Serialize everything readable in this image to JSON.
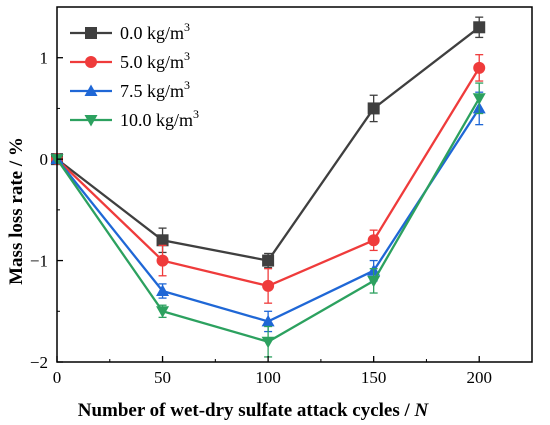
{
  "chart_data": {
    "type": "line",
    "xlabel": "Number of wet-dry sulfate attack cycles / ",
    "xlabel_italic": "N",
    "ylabel": "Mass loss rate / %",
    "x": [
      0,
      50,
      100,
      150,
      200
    ],
    "xlim": [
      0,
      225
    ],
    "ylim": [
      -2,
      1.5
    ],
    "xticks": [
      0,
      50,
      100,
      150,
      200
    ],
    "yticks": [
      -2,
      -1,
      0,
      1
    ],
    "xtick_labels": [
      "0",
      "50",
      "100",
      "150",
      "200"
    ],
    "ytick_labels": [
      "−2",
      "−1",
      "0",
      "1"
    ],
    "grid": false,
    "legend_position": "top-left",
    "series": [
      {
        "name": "0.0 kg/m",
        "name_sup": "3",
        "values": [
          0,
          -0.8,
          -1.0,
          0.5,
          1.3
        ],
        "errors": [
          0,
          0.12,
          0.07,
          0.13,
          0.1
        ],
        "color": "#3f3f3f",
        "marker": "square"
      },
      {
        "name": "5.0  kg/m",
        "name_sup": "3",
        "values": [
          0,
          -1.0,
          -1.25,
          -0.8,
          0.9
        ],
        "errors": [
          0,
          0.15,
          0.17,
          0.1,
          0.13
        ],
        "color": "#ef3b3b",
        "marker": "circle"
      },
      {
        "name": "7.5 kg/m",
        "name_sup": "3",
        "values": [
          0,
          -1.3,
          -1.6,
          -1.1,
          0.5
        ],
        "errors": [
          0,
          0.07,
          0.1,
          0.1,
          0.16
        ],
        "color": "#1f67d6",
        "marker": "triangle-up"
      },
      {
        "name": "10.0  kg/m",
        "name_sup": "3",
        "values": [
          0,
          -1.5,
          -1.8,
          -1.2,
          0.6
        ],
        "errors": [
          0,
          0.06,
          0.15,
          0.12,
          0.15
        ],
        "color": "#2ca15f",
        "marker": "triangle-down"
      }
    ]
  }
}
